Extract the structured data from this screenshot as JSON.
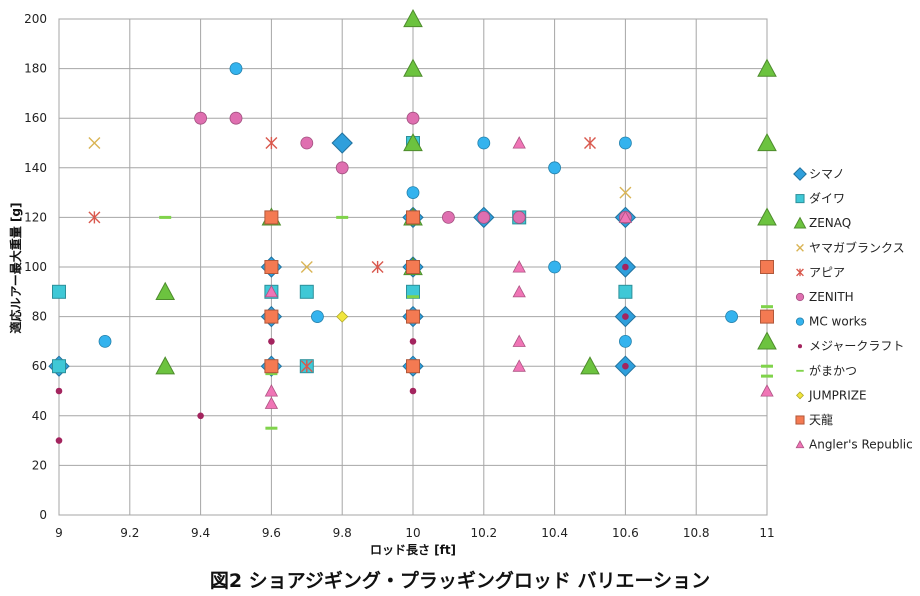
{
  "caption": "図2 ショアジギング・プラッギングロッド バリエーション",
  "chart_data": {
    "type": "scatter",
    "title": "",
    "xlabel": "ロッド長さ [ft]",
    "ylabel": "適応ルアー最大重量 [g]",
    "xlim": [
      9,
      11
    ],
    "ylim": [
      0,
      200
    ],
    "x_ticks": [
      "9",
      "9.2",
      "9.4",
      "9.6",
      "9.8",
      "10",
      "10.2",
      "10.4",
      "10.6",
      "10.8",
      "11"
    ],
    "y_ticks": [
      "0",
      "20",
      "40",
      "60",
      "80",
      "100",
      "120",
      "140",
      "160",
      "180",
      "200"
    ],
    "grid": true,
    "legend_position": "right",
    "series": [
      {
        "name": "シマノ",
        "marker": "diamond",
        "color": "#2f9fdc",
        "points": [
          [
            9,
            60
          ],
          [
            9.6,
            60
          ],
          [
            9.6,
            80
          ],
          [
            9.6,
            100
          ],
          [
            9.8,
            150
          ],
          [
            10,
            60
          ],
          [
            10,
            80
          ],
          [
            10,
            100
          ],
          [
            10,
            120
          ],
          [
            10.2,
            120
          ],
          [
            10.6,
            60
          ],
          [
            10.6,
            80
          ],
          [
            10.6,
            100
          ],
          [
            10.6,
            120
          ]
        ]
      },
      {
        "name": "ダイワ",
        "marker": "square",
        "color": "#3fc8d6",
        "points": [
          [
            9,
            90
          ],
          [
            9,
            60
          ],
          [
            9.6,
            90
          ],
          [
            9.7,
            90
          ],
          [
            9.7,
            60
          ],
          [
            10,
            90
          ],
          [
            10,
            150
          ],
          [
            10.3,
            120
          ],
          [
            10.6,
            90
          ]
        ]
      },
      {
        "name": "ZENAQ",
        "marker": "triangle",
        "color": "#6cc33f",
        "points": [
          [
            9.3,
            90
          ],
          [
            9.3,
            60
          ],
          [
            9.6,
            120
          ],
          [
            10,
            200
          ],
          [
            10,
            180
          ],
          [
            10,
            150
          ],
          [
            10,
            120
          ],
          [
            10,
            100
          ],
          [
            10.5,
            60
          ],
          [
            11,
            180
          ],
          [
            11,
            150
          ],
          [
            11,
            120
          ],
          [
            11,
            70
          ]
        ]
      },
      {
        "name": "ヤマガブランクス",
        "marker": "x",
        "color": "#d9b454",
        "points": [
          [
            9.1,
            150
          ],
          [
            9.7,
            100
          ],
          [
            10.6,
            130
          ]
        ]
      },
      {
        "name": "アピア",
        "marker": "star",
        "color": "#d9584d",
        "points": [
          [
            9.1,
            120
          ],
          [
            9.6,
            150
          ],
          [
            9.7,
            60
          ],
          [
            9.9,
            100
          ],
          [
            10.5,
            150
          ]
        ]
      },
      {
        "name": "ZENITH",
        "marker": "circle",
        "color": "#df6fb0",
        "points": [
          [
            9.4,
            160
          ],
          [
            9.5,
            160
          ],
          [
            9.7,
            150
          ],
          [
            9.8,
            140
          ],
          [
            10,
            160
          ],
          [
            10.1,
            120
          ],
          [
            10.2,
            120
          ],
          [
            10.3,
            120
          ],
          [
            10.6,
            120
          ]
        ]
      },
      {
        "name": "MC works",
        "marker": "circle",
        "color": "#34b3ee",
        "points": [
          [
            9.13,
            70
          ],
          [
            9.5,
            180
          ],
          [
            9.73,
            80
          ],
          [
            10,
            130
          ],
          [
            10.2,
            150
          ],
          [
            10.4,
            140
          ],
          [
            10.4,
            100
          ],
          [
            10.6,
            150
          ],
          [
            10.6,
            70
          ],
          [
            10.9,
            80
          ]
        ]
      },
      {
        "name": "メジャークラフト",
        "marker": "dot",
        "color": "#a3245e",
        "points": [
          [
            9,
            50
          ],
          [
            9,
            30
          ],
          [
            9.4,
            40
          ],
          [
            9.6,
            70
          ],
          [
            9.6,
            60
          ],
          [
            10,
            70
          ],
          [
            10,
            50
          ],
          [
            10.6,
            100
          ],
          [
            10.6,
            80
          ],
          [
            10.6,
            60
          ]
        ]
      },
      {
        "name": "がまかつ",
        "marker": "dash",
        "color": "#80d34b",
        "points": [
          [
            9.3,
            120
          ],
          [
            9.6,
            57
          ],
          [
            9.6,
            35
          ],
          [
            9.8,
            120
          ],
          [
            10,
            88
          ],
          [
            11,
            84
          ],
          [
            11,
            60
          ],
          [
            11,
            56
          ]
        ]
      },
      {
        "name": "JUMPRIZE",
        "marker": "diamond-small",
        "color": "#f1e63c",
        "points": [
          [
            9.8,
            80
          ]
        ]
      },
      {
        "name": "天龍",
        "marker": "square",
        "color": "#f47a52",
        "points": [
          [
            9.6,
            120
          ],
          [
            9.6,
            100
          ],
          [
            9.6,
            80
          ],
          [
            9.6,
            60
          ],
          [
            10,
            120
          ],
          [
            10,
            100
          ],
          [
            10,
            80
          ],
          [
            10,
            60
          ],
          [
            11,
            100
          ],
          [
            11,
            80
          ]
        ]
      },
      {
        "name": "Angler's Republic",
        "marker": "triangle-small",
        "color": "#f075b6",
        "points": [
          [
            9.6,
            90
          ],
          [
            9.6,
            50
          ],
          [
            9.6,
            45
          ],
          [
            10.3,
            150
          ],
          [
            10.3,
            100
          ],
          [
            10.3,
            90
          ],
          [
            10.3,
            70
          ],
          [
            10.3,
            60
          ],
          [
            10.6,
            120
          ],
          [
            11,
            50
          ]
        ]
      }
    ]
  }
}
